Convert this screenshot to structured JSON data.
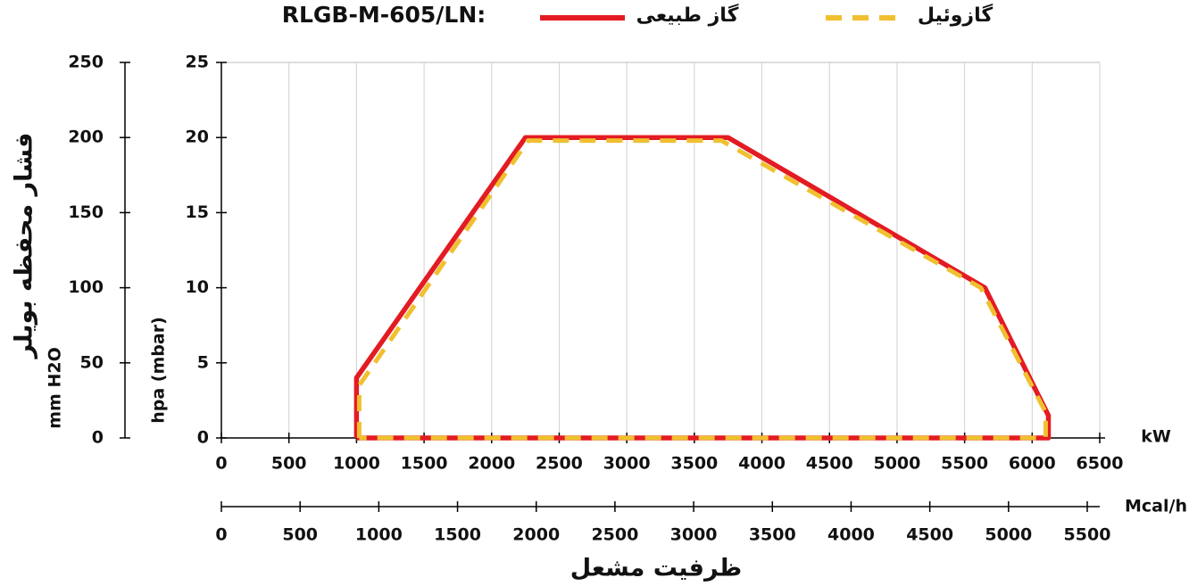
{
  "chart_data": {
    "type": "line",
    "title": "RLGB-M-605/LN:",
    "x_label": "kW",
    "x2_label": "Mcal/h",
    "bottom_label": "ظرفیت مشعل",
    "y_label": "hpa (mbar)",
    "y2_label": "mm H2O",
    "y2_title": "فشار محفظه بویلر",
    "xlim": [
      0,
      6500
    ],
    "xticks": [
      0,
      500,
      1000,
      1500,
      2000,
      2500,
      3000,
      3500,
      4000,
      4500,
      5000,
      5500,
      6000,
      6500
    ],
    "x2lim": [
      0,
      5500
    ],
    "x2ticks": [
      0,
      500,
      1000,
      1500,
      2000,
      2500,
      3000,
      3500,
      4000,
      4500,
      5000,
      5500
    ],
    "ylim": [
      0,
      25
    ],
    "yticks": [
      0,
      5,
      10,
      15,
      20,
      25
    ],
    "y2lim": [
      0,
      250
    ],
    "y2ticks": [
      0,
      50,
      100,
      150,
      200,
      250
    ],
    "grid": true,
    "series": [
      {
        "name": "گاز طبیعی",
        "color": "#e31b23",
        "dashed": false,
        "x": [
          1000,
          1000,
          2250,
          3750,
          5650,
          6120,
          6120,
          1000
        ],
        "values": [
          0,
          4,
          20,
          20,
          10,
          1.5,
          0,
          0
        ]
      },
      {
        "name": "گازوئیل",
        "color": "#f0c030",
        "dashed": true,
        "x": [
          1020,
          1020,
          2270,
          3700,
          5620,
          6100,
          6100,
          1020
        ],
        "values": [
          0,
          3.5,
          19.8,
          19.8,
          10,
          1.7,
          0,
          0
        ]
      }
    ]
  }
}
